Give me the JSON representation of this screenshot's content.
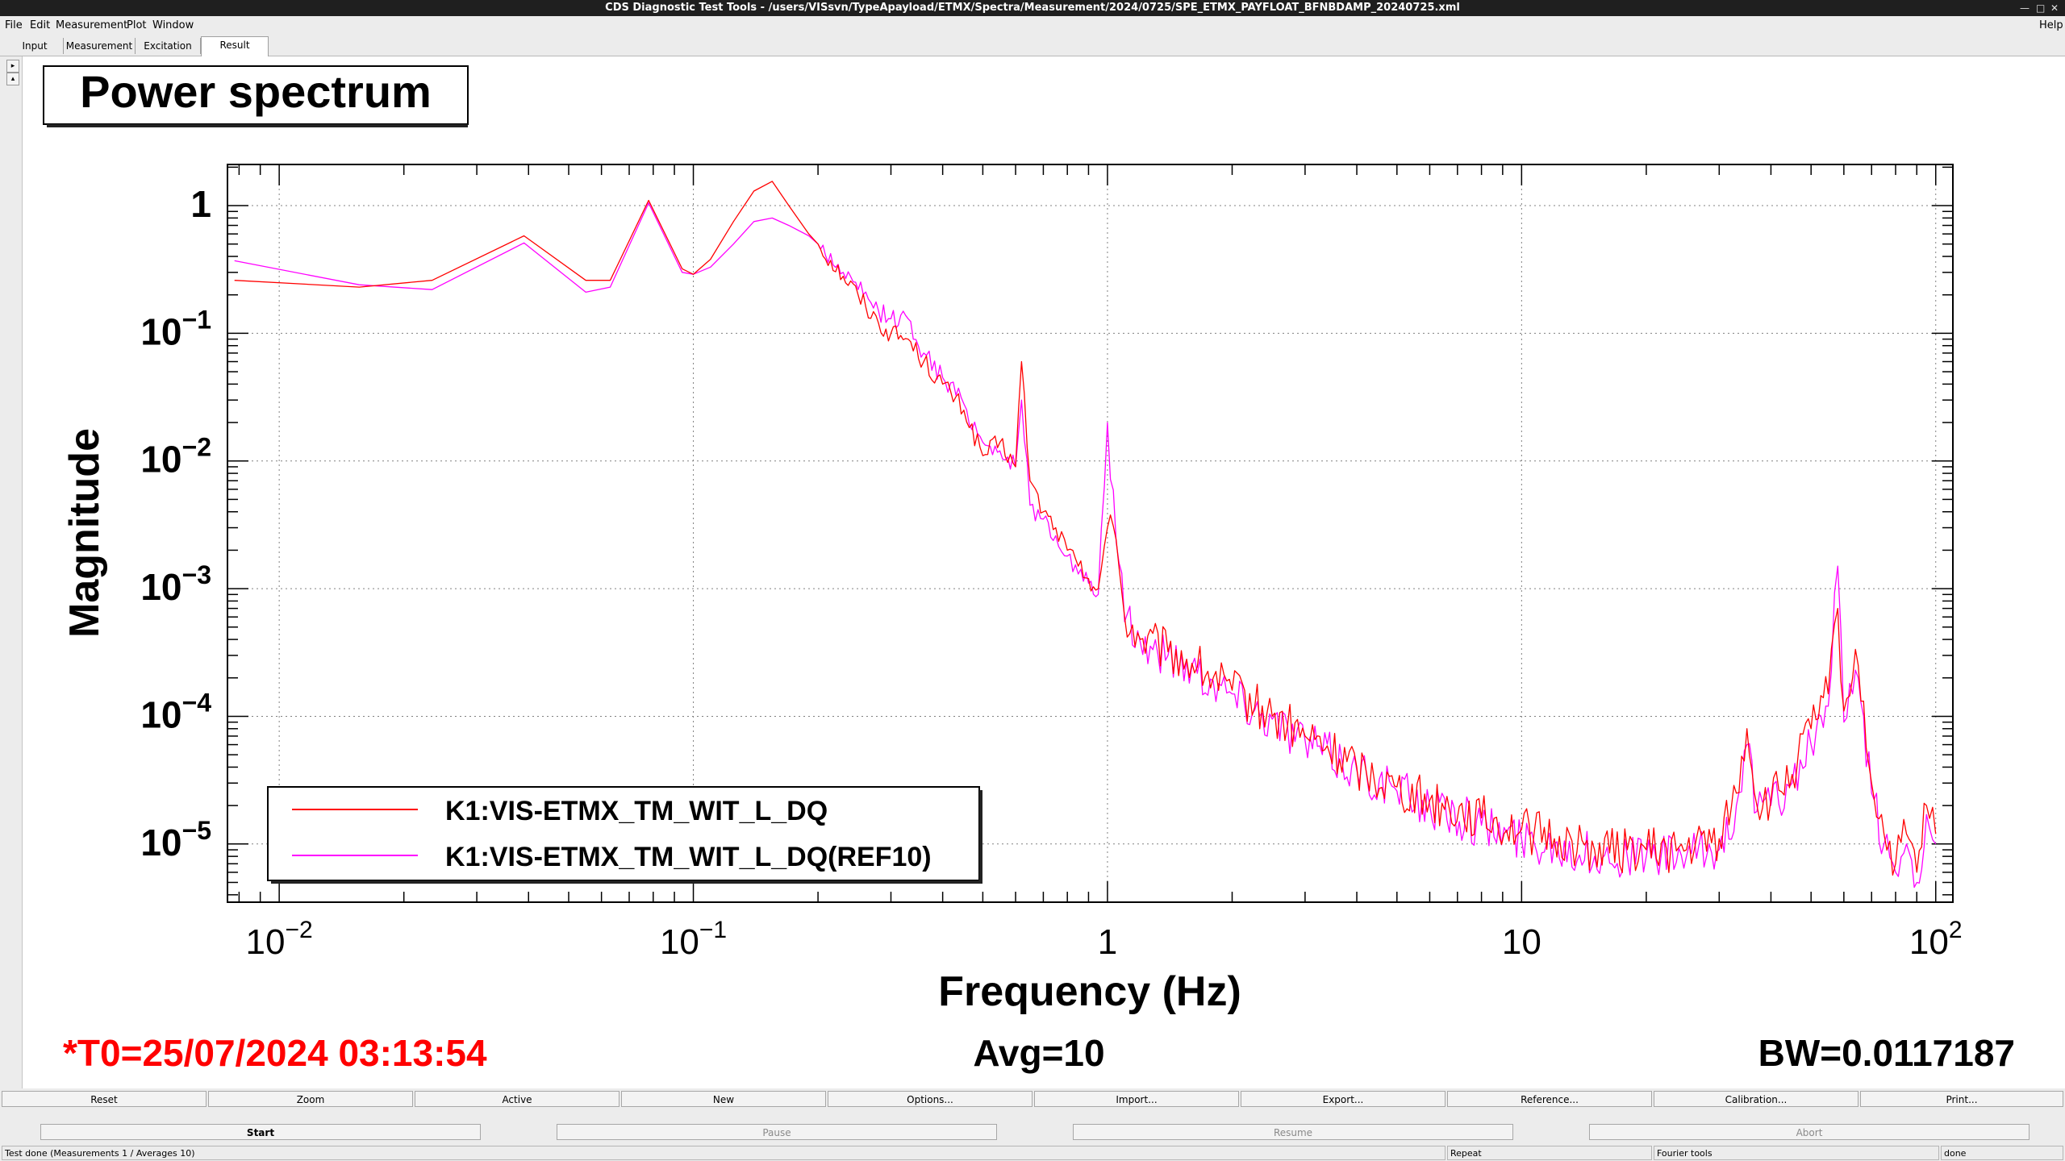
{
  "window": {
    "title": "CDS Diagnostic Test Tools - /users/VISsvn/TypeApayload/ETMX/Spectra/Measurement/2024/0725/SPE_ETMX_PAYFLOAT_BFNBDAMP_20240725.xml"
  },
  "menu": {
    "items": [
      {
        "label": "File"
      },
      {
        "label": "Edit"
      },
      {
        "label": "Measurement"
      },
      {
        "label": "Plot"
      },
      {
        "label": "Window"
      }
    ],
    "help": "Help"
  },
  "tabs": [
    {
      "label": "Input"
    },
    {
      "label": "Measurement"
    },
    {
      "label": "Excitation"
    },
    {
      "label": "Result"
    }
  ],
  "plot": {
    "title": "Power spectrum",
    "t0": "*T0=25/07/2024 03:13:54",
    "avg": "Avg=10",
    "bw": "BW=0.0117187",
    "colors": {
      "series1": "#ff0000",
      "series2": "#ff00ff",
      "t0_text": "#ff0000"
    }
  },
  "chart_data": {
    "type": "line",
    "title": "Power spectrum",
    "xlabel": "Frequency (Hz)",
    "ylabel": "Magnitude",
    "x_scale": "log",
    "y_scale": "log",
    "xlim": [
      0.0075,
      110
    ],
    "ylim": [
      3.5e-06,
      2.1
    ],
    "grid": true,
    "legend_position": "bottom-left",
    "x_ticks": [
      {
        "base": "10",
        "exp": "−2"
      },
      {
        "base": "10",
        "exp": "−1"
      },
      {
        "base": "1",
        "exp": ""
      },
      {
        "base": "10",
        "exp": ""
      },
      {
        "base": "10",
        "exp": "2"
      }
    ],
    "y_ticks": [
      {
        "base": "1",
        "exp": ""
      },
      {
        "base": "10",
        "exp": "−1"
      },
      {
        "base": "10",
        "exp": "−2"
      },
      {
        "base": "10",
        "exp": "−3"
      },
      {
        "base": "10",
        "exp": "−4"
      },
      {
        "base": "10",
        "exp": "−5"
      }
    ],
    "series": [
      {
        "name": "K1:VIS-ETMX_TM_WIT_L_DQ",
        "color": "#ff0000",
        "x": [
          0.0078,
          0.0156,
          0.0234,
          0.039,
          0.055,
          0.063,
          0.078,
          0.094,
          0.1,
          0.11,
          0.125,
          0.14,
          0.155,
          0.17,
          0.19,
          0.2,
          0.23,
          0.25,
          0.28,
          0.3,
          0.33,
          0.36,
          0.4,
          0.45,
          0.5,
          0.55,
          0.6,
          0.62,
          0.65,
          0.7,
          0.75,
          0.8,
          0.85,
          0.9,
          0.95,
          1.0,
          1.05,
          1.1,
          1.2,
          1.4,
          1.6,
          1.8,
          2,
          2.5,
          3,
          4,
          5,
          6,
          8,
          10,
          12,
          15,
          18,
          20,
          25,
          30,
          33,
          35,
          37,
          40,
          45,
          50,
          55,
          58,
          60,
          63,
          65,
          70,
          75,
          80,
          85,
          90,
          95,
          100
        ],
        "y": [
          0.26,
          0.23,
          0.26,
          0.58,
          0.26,
          0.26,
          1.1,
          0.32,
          0.29,
          0.38,
          0.75,
          1.3,
          1.55,
          1.0,
          0.6,
          0.5,
          0.28,
          0.2,
          0.12,
          0.1,
          0.09,
          0.06,
          0.04,
          0.025,
          0.011,
          0.014,
          0.009,
          0.06,
          0.007,
          0.004,
          0.003,
          0.002,
          0.0015,
          0.0012,
          0.001,
          0.003,
          0.0024,
          0.0006,
          0.0004,
          0.00032,
          0.00026,
          0.0002,
          0.00016,
          0.0001,
          7e-05,
          4e-05,
          2.8e-05,
          2.2e-05,
          1.6e-05,
          1.3e-05,
          1.1e-05,
          9e-06,
          9e-06,
          9e-06,
          9e-06,
          1.1e-05,
          2.5e-05,
          8e-05,
          2e-05,
          2.2e-05,
          3.5e-05,
          8e-05,
          0.00015,
          0.0007,
          0.00011,
          0.0002,
          0.00025,
          3e-05,
          1.2e-05,
          7e-06,
          1.2e-05,
          6e-06,
          2e-05,
          1.2e-05
        ]
      },
      {
        "name": "K1:VIS-ETMX_TM_WIT_L_DQ(REF10)",
        "color": "#ff00ff",
        "x": [
          0.0078,
          0.0156,
          0.0234,
          0.039,
          0.055,
          0.063,
          0.078,
          0.094,
          0.1,
          0.11,
          0.125,
          0.14,
          0.155,
          0.17,
          0.19,
          0.2,
          0.23,
          0.25,
          0.28,
          0.3,
          0.33,
          0.36,
          0.4,
          0.45,
          0.5,
          0.55,
          0.6,
          0.62,
          0.65,
          0.7,
          0.75,
          0.8,
          0.85,
          0.9,
          0.95,
          1.0,
          1.05,
          1.1,
          1.2,
          1.4,
          1.6,
          1.8,
          2,
          2.5,
          3,
          4,
          5,
          6,
          8,
          10,
          12,
          15,
          18,
          20,
          25,
          30,
          33,
          35,
          37,
          40,
          45,
          50,
          55,
          58,
          60,
          63,
          65,
          70,
          75,
          80,
          85,
          90,
          95,
          100
        ],
        "y": [
          0.37,
          0.24,
          0.22,
          0.51,
          0.21,
          0.23,
          1.05,
          0.3,
          0.29,
          0.33,
          0.5,
          0.75,
          0.8,
          0.7,
          0.58,
          0.5,
          0.3,
          0.22,
          0.15,
          0.13,
          0.13,
          0.07,
          0.045,
          0.028,
          0.014,
          0.012,
          0.009,
          0.03,
          0.0045,
          0.0035,
          0.0026,
          0.0018,
          0.0013,
          0.0011,
          0.0009,
          0.02,
          0.0023,
          0.00055,
          0.00038,
          0.0003,
          0.00025,
          0.00019,
          0.00015,
          9.5e-05,
          6.5e-05,
          3.8e-05,
          2.6e-05,
          2e-05,
          1.4e-05,
          1.1e-05,
          1e-05,
          8e-06,
          8e-06,
          8e-06,
          8e-06,
          9e-06,
          2e-05,
          6e-05,
          1.8e-05,
          2e-05,
          3e-05,
          6e-05,
          0.00012,
          0.0015,
          9e-05,
          0.00015,
          0.0002,
          2.5e-05,
          1e-05,
          6e-06,
          1e-05,
          5e-06,
          1.7e-05,
          1e-05
        ]
      }
    ]
  },
  "toolbar1": [
    {
      "label": "Reset"
    },
    {
      "label": "Zoom"
    },
    {
      "label": "Active"
    },
    {
      "label": "New"
    },
    {
      "label": "Options..."
    },
    {
      "label": "Import..."
    },
    {
      "label": "Export..."
    },
    {
      "label": "Reference..."
    },
    {
      "label": "Calibration..."
    },
    {
      "label": "Print..."
    }
  ],
  "toolbar2": [
    {
      "label": "Start"
    },
    {
      "label": "Pause"
    },
    {
      "label": "Resume"
    },
    {
      "label": "Abort"
    }
  ],
  "status": {
    "message": "Test done (Measurements 1 / Averages 10)",
    "repeat": "Repeat",
    "fourier": "Fourier tools",
    "state": "done"
  }
}
